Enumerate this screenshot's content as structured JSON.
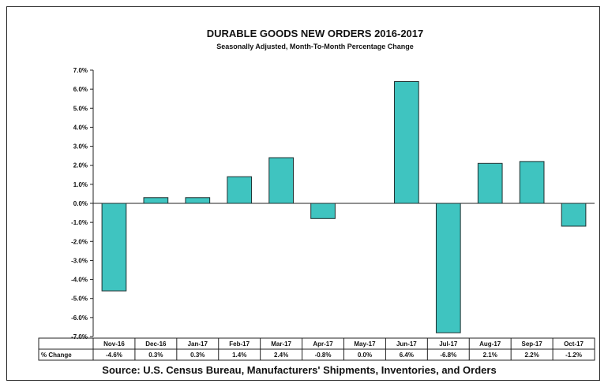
{
  "chart_data": {
    "type": "bar",
    "title": "DURABLE GOODS NEW ORDERS 2016-2017",
    "subtitle": "Seasonally Adjusted,  Month-To-Month  Percentage  Change",
    "categories": [
      "Nov-16",
      "Dec-16",
      "Jan-17",
      "Feb-17",
      "Mar-17",
      "Apr-17",
      "May-17",
      "Jun-17",
      "Jul-17",
      "Aug-17",
      "Sep-17",
      "Oct-17"
    ],
    "values": [
      -4.6,
      0.3,
      0.3,
      1.4,
      2.4,
      -0.8,
      0.0,
      6.4,
      -6.8,
      2.1,
      2.2,
      -1.2
    ],
    "value_labels": [
      "-4.6%",
      "0.3%",
      "0.3%",
      "1.4%",
      "2.4%",
      "-0.8%",
      "0.0%",
      "6.4%",
      "-6.8%",
      "2.1%",
      "2.2%",
      "-1.2%"
    ],
    "ylim": [
      -7.0,
      7.0
    ],
    "yticks": [
      "7.0%",
      "6.0%",
      "5.0%",
      "4.0%",
      "3.0%",
      "2.0%",
      "1.0%",
      "0.0%",
      "-1.0%",
      "-2.0%",
      "-3.0%",
      "-4.0%",
      "-5.0%",
      "-6.0%",
      "-7.0%"
    ],
    "row_label": "% Change",
    "grid": false,
    "bar_color": "#3fc4c0"
  },
  "source": "Source: U.S. Census Bureau, Manufacturers' Shipments, Inventories, and Orders"
}
